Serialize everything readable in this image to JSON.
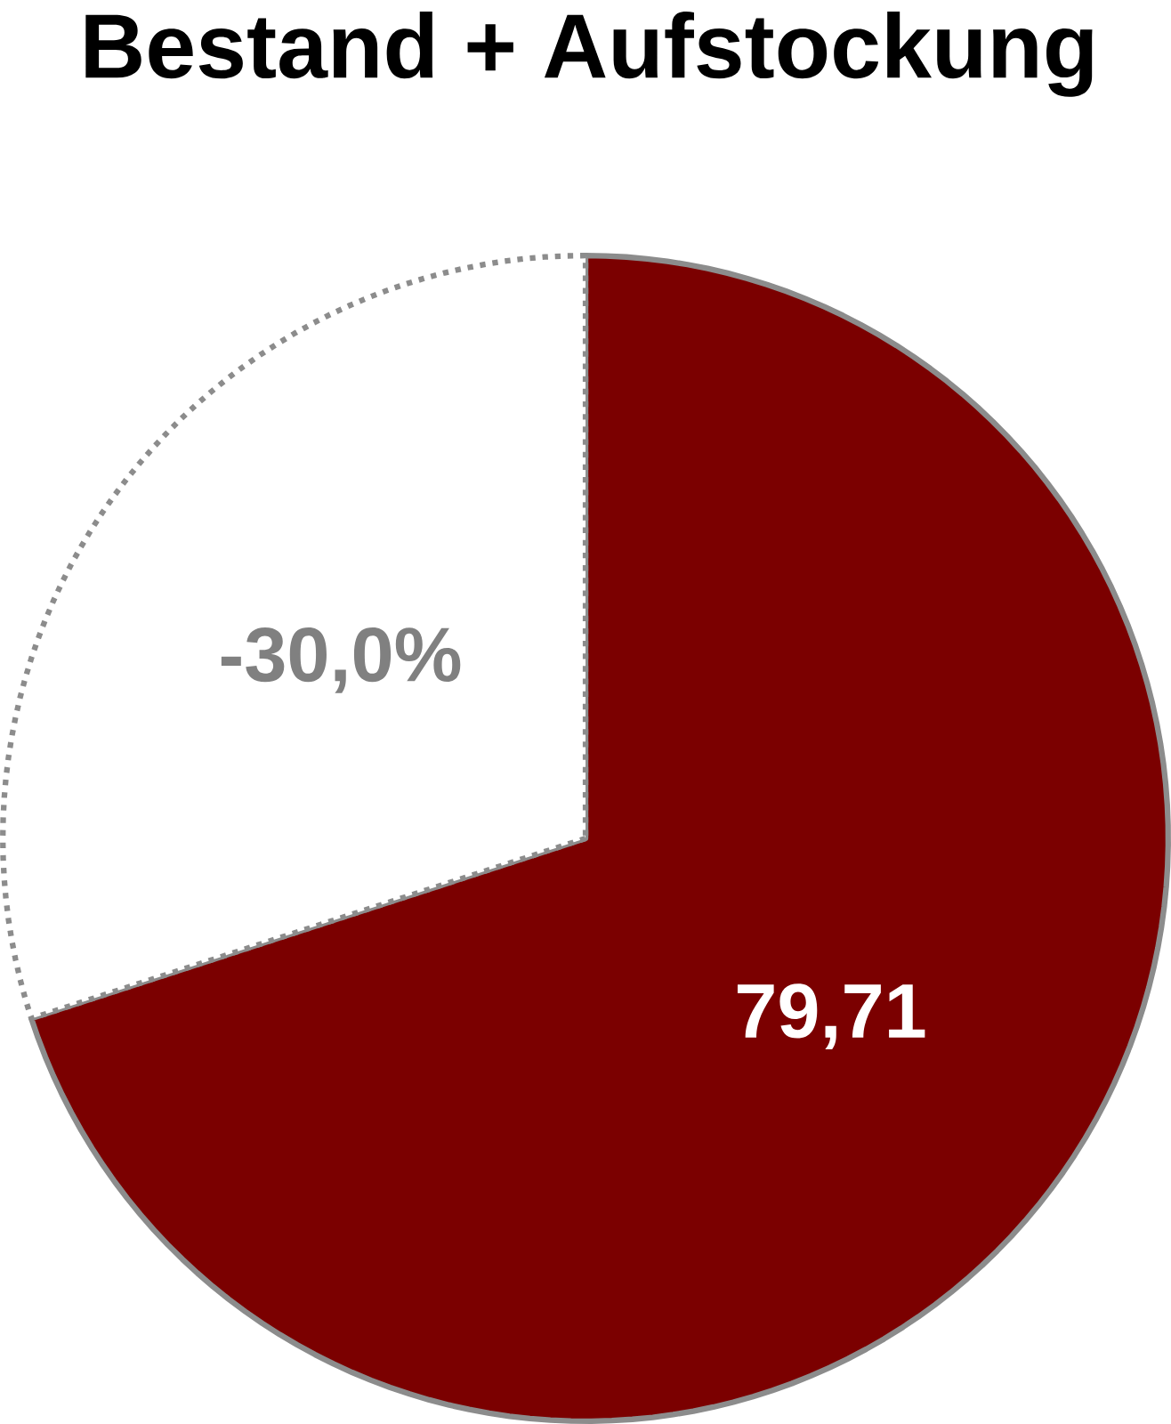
{
  "chart_data": {
    "type": "pie",
    "title": "Bestand + Aufstockung",
    "categories": [
      null,
      null
    ],
    "values": [
      70,
      30
    ],
    "colors": [
      "#7b0000",
      "#ffffff"
    ],
    "annotations": [
      "79,71",
      "-30,0%"
    ]
  }
}
